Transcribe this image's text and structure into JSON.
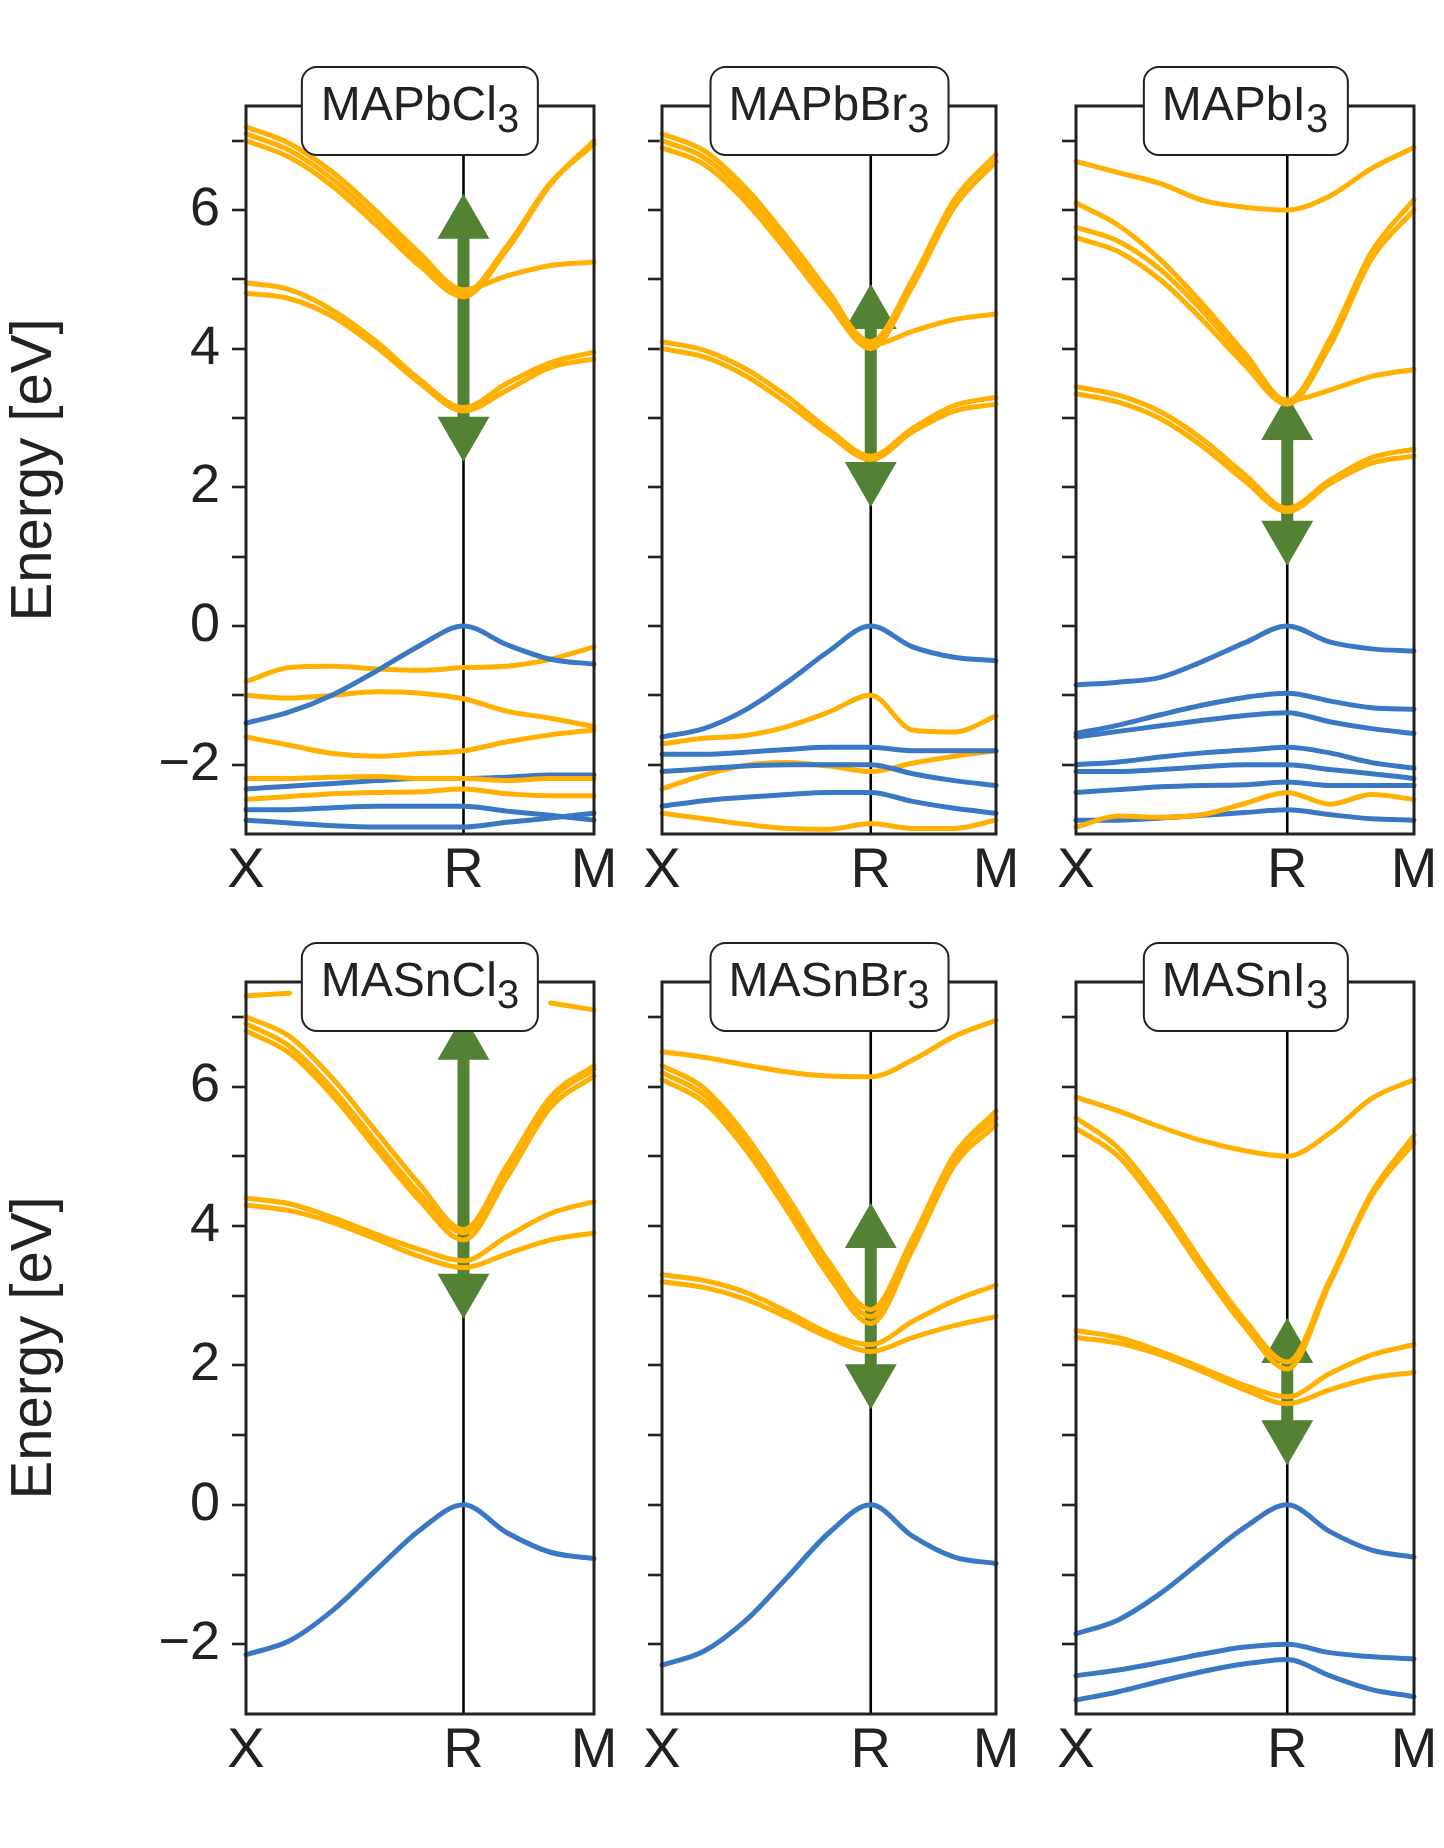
{
  "chart_data": [
    {
      "type": "line",
      "title": "MAPbCl$_{3}$",
      "ylabel": "Energy [eV]",
      "marker": "none",
      "categories": [
        "X",
        null,
        null,
        null,
        null,
        "R",
        null,
        null,
        "M"
      ],
      "ylim": [
        -3,
        7.5
      ],
      "yticks": [
        {
          "value": -2,
          "label": "−2"
        },
        {
          "value": -1,
          "label": null
        },
        0,
        {
          "value": 1,
          "label": null
        },
        2,
        {
          "value": 3,
          "label": null
        },
        4,
        {
          "value": 5,
          "label": null
        },
        6,
        {
          "value": 7,
          "label": null
        }
      ],
      "ref_lines": [
        {
          "axis": "x",
          "value": "R",
          "color": "#000000"
        }
      ],
      "series": [
        {
          "color": "#ffb000",
          "values": [
            4.8,
            4.72,
            4.46,
            4.02,
            3.5,
            3.1,
            3.4,
            3.73,
            3.85
          ]
        },
        {
          "color": "#ffb000",
          "values": [
            4.95,
            4.85,
            4.55,
            4.1,
            3.55,
            3.15,
            3.5,
            3.8,
            3.95
          ]
        },
        {
          "color": "#ffb000",
          "values": [
            7.0,
            6.76,
            6.34,
            5.78,
            5.19,
            4.75,
            5.43,
            6.37,
            7.0
          ]
        },
        {
          "color": "#ffb000",
          "values": [
            7.1,
            6.86,
            6.44,
            5.88,
            5.28,
            4.8,
            5.48,
            6.39,
            6.95
          ]
        },
        {
          "color": "#ffb000",
          "values": [
            7.2,
            6.96,
            6.54,
            5.98,
            5.37,
            4.85,
            5.05,
            5.2,
            5.25
          ]
        },
        {
          "color": "#3a78c4",
          "values": [
            -1.4,
            -1.24,
            -0.99,
            -0.65,
            -0.28,
            0,
            -0.27,
            -0.48,
            -0.55
          ]
        },
        {
          "color": "#ffb000",
          "values": [
            -0.8,
            -0.6,
            -0.58,
            -0.62,
            -0.64,
            -0.6,
            -0.58,
            -0.48,
            -0.3
          ]
        },
        {
          "color": "#ffb000",
          "values": [
            -1.0,
            -1.04,
            -1.0,
            -0.95,
            -0.97,
            -1.05,
            -1.23,
            -1.33,
            -1.45
          ]
        },
        {
          "color": "#ffb000",
          "values": [
            -1.6,
            -1.72,
            -1.84,
            -1.88,
            -1.84,
            -1.8,
            -1.67,
            -1.57,
            -1.5
          ]
        },
        {
          "color": "#ffb000",
          "values": [
            -2.2,
            -2.2,
            -2.18,
            -2.17,
            -2.2,
            -2.2,
            -2.23,
            -2.2,
            -2.2
          ]
        },
        {
          "color": "#3a78c4",
          "values": [
            -2.35,
            -2.31,
            -2.27,
            -2.23,
            -2.2,
            -2.2,
            -2.18,
            -2.15,
            -2.15
          ]
        },
        {
          "color": "#ffb000",
          "values": [
            -2.5,
            -2.46,
            -2.42,
            -2.4,
            -2.39,
            -2.35,
            -2.42,
            -2.45,
            -2.45
          ]
        },
        {
          "color": "#3a78c4",
          "values": [
            -2.65,
            -2.65,
            -2.62,
            -2.6,
            -2.6,
            -2.6,
            -2.67,
            -2.73,
            -2.8
          ]
        },
        {
          "color": "#3a78c4",
          "values": [
            -2.8,
            -2.84,
            -2.88,
            -2.9,
            -2.9,
            -2.9,
            -2.83,
            -2.77,
            -2.7
          ]
        },
        {
          "color": "#548235",
          "x": [
            "R",
            "R"
          ],
          "values": [
            2.8,
            5.8
          ],
          "marker": "triangle"
        }
      ]
    },
    {
      "type": "line",
      "title": "MAPbBr$_{3}$",
      "tick_labels": "x",
      "marker": "none",
      "categories": [
        "X",
        null,
        null,
        null,
        null,
        "R",
        null,
        null,
        "M"
      ],
      "ylim": [
        -3,
        7.5
      ],
      "yticks": [
        -2,
        -1,
        0,
        1,
        2,
        3,
        4,
        5,
        6,
        7
      ],
      "ref_lines": [
        {
          "axis": "x",
          "value": "R",
          "color": "#000000"
        }
      ],
      "series": [
        {
          "color": "#ffb000",
          "values": [
            4.0,
            3.88,
            3.61,
            3.21,
            2.76,
            2.4,
            2.8,
            3.1,
            3.2
          ]
        },
        {
          "color": "#ffb000",
          "values": [
            4.1,
            3.98,
            3.71,
            3.31,
            2.83,
            2.45,
            2.85,
            3.18,
            3.3
          ]
        },
        {
          "color": "#ffb000",
          "values": [
            6.9,
            6.66,
            6.12,
            5.4,
            4.64,
            4.0,
            4.9,
            6.04,
            6.7
          ]
        },
        {
          "color": "#ffb000",
          "values": [
            7.1,
            6.86,
            6.32,
            5.6,
            4.81,
            4.05,
            4.25,
            4.42,
            4.5
          ]
        },
        {
          "color": "#ffb000",
          "values": [
            7.0,
            6.76,
            6.22,
            5.5,
            4.74,
            4.1,
            5.0,
            6.15,
            6.8
          ]
        },
        {
          "color": "#3a78c4",
          "values": [
            -1.6,
            -1.48,
            -1.21,
            -0.81,
            -0.36,
            0,
            -0.3,
            -0.45,
            -0.5
          ]
        },
        {
          "color": "#ffb000",
          "values": [
            -1.7,
            -1.62,
            -1.58,
            -1.45,
            -1.24,
            -1.0,
            -1.5,
            -1.53,
            -1.3
          ]
        },
        {
          "color": "#3a78c4",
          "values": [
            -1.85,
            -1.85,
            -1.82,
            -1.78,
            -1.75,
            -1.75,
            -1.8,
            -1.8,
            -1.8
          ]
        },
        {
          "color": "#3a78c4",
          "values": [
            -2.1,
            -2.06,
            -2.02,
            -2.0,
            -2.0,
            -2.0,
            -2.13,
            -2.23,
            -2.3
          ]
        },
        {
          "color": "#ffb000",
          "values": [
            -2.35,
            -2.15,
            -2.01,
            -1.97,
            -2.02,
            -2.1,
            -1.98,
            -1.88,
            -1.8
          ]
        },
        {
          "color": "#3a78c4",
          "values": [
            -2.6,
            -2.52,
            -2.47,
            -2.43,
            -2.4,
            -2.4,
            -2.53,
            -2.63,
            -2.7
          ]
        },
        {
          "color": "#ffb000",
          "values": [
            -2.7,
            -2.78,
            -2.86,
            -2.92,
            -2.93,
            -2.85,
            -2.92,
            -2.92,
            -2.8
          ]
        },
        {
          "color": "#548235",
          "x": [
            "R",
            "R"
          ],
          "values": [
            2.15,
            4.5
          ],
          "marker": "triangle"
        }
      ]
    },
    {
      "type": "line",
      "title": "MAPbI$_{3}$",
      "tick_labels": "x",
      "marker": "none",
      "categories": [
        "X",
        null,
        null,
        null,
        null,
        "R",
        null,
        null,
        "M"
      ],
      "ylim": [
        -3,
        7.5
      ],
      "yticks": [
        -2,
        -1,
        0,
        1,
        2,
        3,
        4,
        5,
        6,
        7
      ],
      "ref_lines": [
        {
          "axis": "x",
          "value": "R",
          "color": "#000000"
        }
      ],
      "series": [
        {
          "color": "#ffb000",
          "values": [
            3.35,
            3.23,
            2.99,
            2.59,
            2.09,
            1.65,
            2.05,
            2.35,
            2.45
          ]
        },
        {
          "color": "#ffb000",
          "values": [
            3.45,
            3.33,
            3.09,
            2.69,
            2.18,
            1.7,
            2.1,
            2.43,
            2.55
          ]
        },
        {
          "color": "#ffb000",
          "values": [
            5.75,
            5.55,
            5.14,
            4.54,
            3.85,
            3.25,
            4.13,
            5.4,
            6.15
          ]
        },
        {
          "color": "#ffb000",
          "values": [
            6.1,
            5.78,
            5.28,
            4.64,
            3.93,
            3.25,
            3.4,
            3.6,
            3.7
          ]
        },
        {
          "color": "#ffb000",
          "values": [
            5.6,
            5.4,
            4.99,
            4.41,
            3.76,
            3.2,
            4.03,
            5.3,
            6.0
          ]
        },
        {
          "color": "#ffb000",
          "values": [
            6.7,
            6.54,
            6.38,
            6.14,
            6.04,
            6.0,
            6.2,
            6.6,
            6.9
          ]
        },
        {
          "color": "#3a78c4",
          "values": [
            -0.85,
            -0.81,
            -0.74,
            -0.51,
            -0.24,
            0,
            -0.23,
            -0.33,
            -0.36
          ]
        },
        {
          "color": "#3a78c4",
          "values": [
            -1.55,
            -1.43,
            -1.28,
            -1.14,
            -1.03,
            -0.97,
            -1.08,
            -1.18,
            -1.2
          ]
        },
        {
          "color": "#3a78c4",
          "values": [
            -1.6,
            -1.52,
            -1.44,
            -1.36,
            -1.29,
            -1.25,
            -1.38,
            -1.48,
            -1.55
          ]
        },
        {
          "color": "#3a78c4",
          "values": [
            -2.0,
            -1.96,
            -1.89,
            -1.83,
            -1.79,
            -1.75,
            -1.83,
            -1.97,
            -2.05
          ]
        },
        {
          "color": "#3a78c4",
          "values": [
            -2.1,
            -2.1,
            -2.07,
            -2.03,
            -2.0,
            -2.0,
            -2.07,
            -2.13,
            -2.2
          ]
        },
        {
          "color": "#3a78c4",
          "values": [
            -2.4,
            -2.36,
            -2.32,
            -2.3,
            -2.29,
            -2.25,
            -2.3,
            -2.3,
            -2.3
          ]
        },
        {
          "color": "#ffb000",
          "values": [
            -2.9,
            -2.74,
            -2.76,
            -2.72,
            -2.56,
            -2.4,
            -2.57,
            -2.43,
            -2.5
          ]
        },
        {
          "color": "#3a78c4",
          "values": [
            -2.8,
            -2.8,
            -2.77,
            -2.73,
            -2.69,
            -2.65,
            -2.72,
            -2.78,
            -2.8
          ]
        },
        {
          "color": "#548235",
          "x": [
            "R",
            "R"
          ],
          "values": [
            1.3,
            2.9
          ],
          "marker": "triangle"
        }
      ]
    },
    {
      "type": "line",
      "title": "MASnCl$_{3}$",
      "ylabel": "Energy [eV]",
      "marker": "none",
      "categories": [
        "X",
        null,
        null,
        null,
        null,
        "R",
        null,
        null,
        "M"
      ],
      "ylim": [
        -3,
        7.5
      ],
      "yticks": [
        {
          "value": -2,
          "label": "−2"
        },
        {
          "value": -1,
          "label": null
        },
        0,
        {
          "value": 1,
          "label": null
        },
        2,
        {
          "value": 3,
          "label": null
        },
        4,
        {
          "value": 5,
          "label": null
        },
        6,
        {
          "value": 7,
          "label": null
        }
      ],
      "ref_lines": [
        {
          "axis": "x",
          "value": "R",
          "color": "#000000"
        }
      ],
      "series": [
        {
          "color": "#ffb000",
          "values": [
            4.3,
            4.22,
            4.05,
            3.81,
            3.56,
            3.4,
            3.6,
            3.8,
            3.9
          ]
        },
        {
          "color": "#ffb000",
          "values": [
            4.4,
            4.32,
            4.12,
            3.88,
            3.66,
            3.5,
            3.85,
            4.18,
            4.35
          ]
        },
        {
          "color": "#ffb000",
          "values": [
            6.8,
            6.48,
            5.86,
            5.1,
            4.36,
            3.8,
            4.7,
            5.7,
            6.15
          ]
        },
        {
          "color": "#ffb000",
          "values": [
            6.9,
            6.58,
            5.96,
            5.2,
            4.46,
            3.9,
            4.8,
            5.8,
            6.25
          ]
        },
        {
          "color": "#ffb000",
          "values": [
            7.0,
            6.72,
            6.11,
            5.35,
            4.59,
            3.95,
            4.87,
            5.85,
            6.3
          ]
        },
        {
          "color": "#ffb000",
          "values": [
            7.3,
            7.34,
            null,
            null,
            null,
            null,
            null,
            7.2,
            7.1
          ]
        },
        {
          "color": "#3a78c4",
          "values": [
            -2.15,
            -1.95,
            -1.51,
            -0.93,
            -0.36,
            0,
            -0.4,
            -0.68,
            -0.77
          ]
        },
        {
          "color": "#548235",
          "x": [
            "R",
            "R"
          ],
          "values": [
            3.1,
            6.6
          ],
          "marker": "triangle"
        }
      ]
    },
    {
      "type": "line",
      "title": "MASnBr$_{3}$",
      "tick_labels": "x",
      "marker": "none",
      "categories": [
        "X",
        null,
        null,
        null,
        null,
        "R",
        null,
        null,
        "M"
      ],
      "ylim": [
        -3,
        7.5
      ],
      "yticks": [
        -2,
        -1,
        0,
        1,
        2,
        3,
        4,
        5,
        6,
        7
      ],
      "ref_lines": [
        {
          "axis": "x",
          "value": "R",
          "color": "#000000"
        }
      ],
      "series": [
        {
          "color": "#ffb000",
          "values": [
            3.2,
            3.12,
            2.95,
            2.69,
            2.4,
            2.2,
            2.4,
            2.57,
            2.7
          ]
        },
        {
          "color": "#ffb000",
          "values": [
            3.3,
            3.22,
            3.05,
            2.77,
            2.46,
            2.3,
            2.63,
            2.93,
            3.15
          ]
        },
        {
          "color": "#ffb000",
          "values": [
            6.1,
            5.78,
            5.1,
            4.22,
            3.28,
            2.6,
            3.66,
            4.87,
            5.45
          ]
        },
        {
          "color": "#ffb000",
          "values": [
            6.2,
            5.88,
            5.2,
            4.32,
            3.38,
            2.7,
            3.76,
            4.97,
            5.55
          ]
        },
        {
          "color": "#ffb000",
          "values": [
            6.3,
            5.98,
            5.3,
            4.42,
            3.48,
            2.8,
            3.82,
            5.02,
            5.65
          ]
        },
        {
          "color": "#ffb000",
          "values": [
            6.5,
            6.42,
            6.31,
            6.21,
            6.15,
            6.14,
            6.38,
            6.72,
            6.95
          ]
        },
        {
          "color": "#3a78c4",
          "values": [
            -2.3,
            -2.1,
            -1.66,
            -1.04,
            -0.4,
            0,
            -0.45,
            -0.75,
            -0.84
          ]
        },
        {
          "color": "#548235",
          "x": [
            "R",
            "R"
          ],
          "values": [
            1.8,
            3.9
          ],
          "marker": "triangle"
        }
      ]
    },
    {
      "type": "line",
      "title": "MASnI$_{3}$",
      "tick_labels": "x",
      "marker": "none",
      "categories": [
        "X",
        null,
        null,
        null,
        null,
        "R",
        null,
        null,
        "M"
      ],
      "ylim": [
        -3,
        7.5
      ],
      "yticks": [
        -2,
        -1,
        0,
        1,
        2,
        3,
        4,
        5,
        6,
        7
      ],
      "ref_lines": [
        {
          "axis": "x",
          "value": "R",
          "color": "#000000"
        }
      ],
      "series": [
        {
          "color": "#ffb000",
          "values": [
            2.4,
            2.32,
            2.15,
            1.91,
            1.65,
            1.45,
            1.65,
            1.82,
            1.9
          ]
        },
        {
          "color": "#ffb000",
          "values": [
            2.5,
            2.4,
            2.2,
            1.96,
            1.71,
            1.55,
            1.88,
            2.15,
            2.3
          ]
        },
        {
          "color": "#ffb000",
          "values": [
            5.4,
            5.0,
            4.24,
            3.36,
            2.55,
            1.95,
            3.17,
            4.43,
            5.2
          ]
        },
        {
          "color": "#ffb000",
          "values": [
            5.55,
            5.12,
            4.36,
            3.46,
            2.65,
            2.05,
            3.22,
            4.48,
            5.3
          ]
        },
        {
          "color": "#ffb000",
          "values": [
            5.85,
            5.65,
            5.42,
            5.22,
            5.08,
            5.0,
            5.33,
            5.83,
            6.1
          ]
        },
        {
          "color": "#3a78c4",
          "values": [
            -1.85,
            -1.65,
            -1.27,
            -0.79,
            -0.32,
            0,
            -0.38,
            -0.65,
            -0.75
          ]
        },
        {
          "color": "#3a78c4",
          "values": [
            -2.45,
            -2.37,
            -2.26,
            -2.14,
            -2.04,
            -2.0,
            -2.12,
            -2.18,
            -2.21
          ]
        },
        {
          "color": "#3a78c4",
          "values": [
            -2.8,
            -2.68,
            -2.53,
            -2.39,
            -2.28,
            -2.22,
            -2.45,
            -2.65,
            -2.75
          ]
        },
        {
          "color": "#548235",
          "x": [
            "R",
            "R"
          ],
          "values": [
            1.0,
            2.25
          ],
          "marker": "triangle"
        }
      ]
    }
  ]
}
